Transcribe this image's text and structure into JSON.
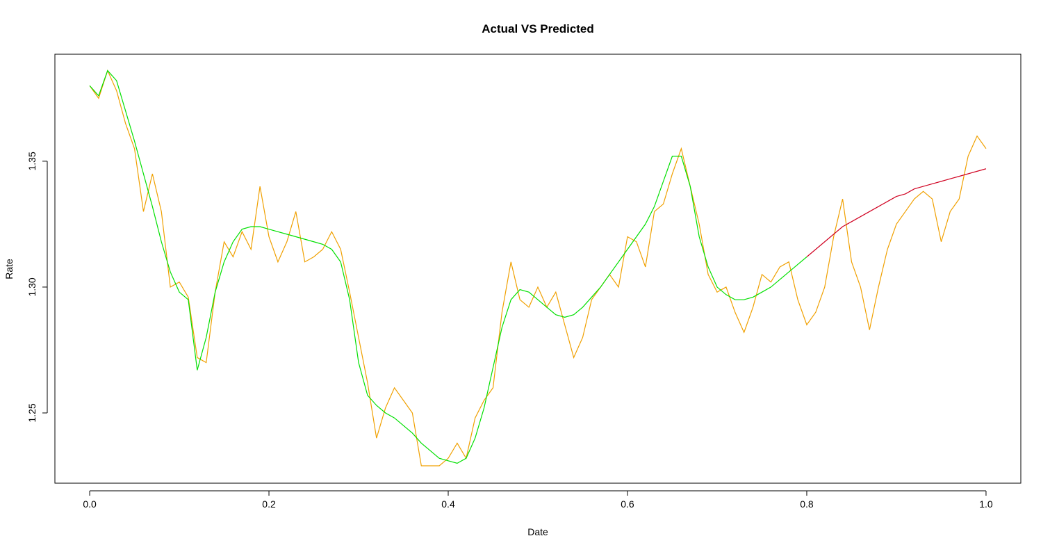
{
  "chart_data": {
    "type": "line",
    "title": "Actual VS Predicted",
    "x_label": "Date",
    "y_label": "Rate",
    "x": [
      0,
      0.01,
      0.02,
      0.03,
      0.04,
      0.05,
      0.06,
      0.07,
      0.08,
      0.09,
      0.1,
      0.11,
      0.12,
      0.13,
      0.14,
      0.15,
      0.16,
      0.17,
      0.18,
      0.19,
      0.2,
      0.21,
      0.22,
      0.23,
      0.24,
      0.25,
      0.26,
      0.27,
      0.28,
      0.29,
      0.3,
      0.31,
      0.32,
      0.33,
      0.34,
      0.35,
      0.36,
      0.37,
      0.38,
      0.39,
      0.4,
      0.41,
      0.42,
      0.43,
      0.44,
      0.45,
      0.46,
      0.47,
      0.48,
      0.49,
      0.5,
      0.51,
      0.52,
      0.53,
      0.54,
      0.55,
      0.56,
      0.57,
      0.58,
      0.59,
      0.6,
      0.61,
      0.62,
      0.63,
      0.64,
      0.65,
      0.66,
      0.67,
      0.68,
      0.69,
      0.7,
      0.71,
      0.72,
      0.73,
      0.74,
      0.75,
      0.76,
      0.77,
      0.78,
      0.79,
      0.8,
      0.81,
      0.82,
      0.83,
      0.84,
      0.85,
      0.86,
      0.87,
      0.88,
      0.89,
      0.9,
      0.91,
      0.92,
      0.93,
      0.94,
      0.95,
      0.96,
      0.97,
      0.98,
      0.99,
      1
    ],
    "series": [
      {
        "color": "#f0a000",
        "values": [
          1.38,
          1.375,
          1.386,
          1.378,
          1.365,
          1.355,
          1.33,
          1.345,
          1.33,
          1.3,
          1.302,
          1.296,
          1.272,
          1.27,
          1.298,
          1.318,
          1.312,
          1.322,
          1.315,
          1.34,
          1.32,
          1.31,
          1.318,
          1.33,
          1.31,
          1.312,
          1.315,
          1.322,
          1.315,
          1.298,
          1.28,
          1.262,
          1.24,
          1.252,
          1.26,
          1.255,
          1.25,
          1.229,
          1.229,
          1.229,
          1.232,
          1.238,
          1.232,
          1.248,
          1.255,
          1.26,
          1.29,
          1.31,
          1.295,
          1.292,
          1.3,
          1.292,
          1.298,
          1.285,
          1.272,
          1.28,
          1.295,
          1.3,
          1.305,
          1.3,
          1.32,
          1.318,
          1.308,
          1.33,
          1.333,
          1.345,
          1.355,
          1.34,
          1.325,
          1.305,
          1.298,
          1.3,
          1.29,
          1.282,
          1.292,
          1.305,
          1.302,
          1.308,
          1.31,
          1.295,
          1.285,
          1.29,
          1.3,
          1.32,
          1.335,
          1.31,
          1.3,
          1.283,
          1.3,
          1.315,
          1.325,
          1.33,
          1.335,
          1.338,
          1.335,
          1.318,
          1.33,
          1.335,
          1.352,
          1.36,
          1.355
        ]
      },
      {
        "color": "#00e000",
        "values": [
          1.38,
          1.376,
          1.386,
          1.382,
          1.37,
          1.358,
          1.345,
          1.332,
          1.318,
          1.306,
          1.298,
          1.295,
          1.267,
          1.28,
          1.298,
          1.31,
          1.318,
          1.323,
          1.324,
          1.324,
          1.323,
          1.322,
          1.321,
          1.32,
          1.319,
          1.318,
          1.317,
          1.315,
          1.31,
          1.295,
          1.27,
          1.257,
          1.253,
          1.25,
          1.248,
          1.245,
          1.242,
          1.238,
          1.235,
          1.232,
          1.231,
          1.23,
          1.232,
          1.24,
          1.252,
          1.268,
          1.284,
          1.295,
          1.299,
          1.298,
          1.295,
          1.292,
          1.289,
          1.288,
          1.289,
          1.292,
          1.296,
          1.3,
          1.305,
          1.31,
          1.315,
          1.32,
          1.325,
          1.332,
          1.342,
          1.352,
          1.352,
          1.34,
          1.32,
          1.308,
          1.3,
          1.297,
          1.295,
          1.295,
          1.296,
          1.298,
          1.3,
          1.303,
          1.306,
          1.309,
          1.312,
          null,
          null,
          null,
          null,
          null,
          null,
          null,
          null,
          null,
          null,
          null,
          null,
          null,
          null,
          null,
          null,
          null,
          null,
          null,
          null
        ]
      },
      {
        "color": "#d00020",
        "values": [
          null,
          null,
          null,
          null,
          null,
          null,
          null,
          null,
          null,
          null,
          null,
          null,
          null,
          null,
          null,
          null,
          null,
          null,
          null,
          null,
          null,
          null,
          null,
          null,
          null,
          null,
          null,
          null,
          null,
          null,
          null,
          null,
          null,
          null,
          null,
          null,
          null,
          null,
          null,
          null,
          null,
          null,
          null,
          null,
          null,
          null,
          null,
          null,
          null,
          null,
          null,
          null,
          null,
          null,
          null,
          null,
          null,
          null,
          null,
          null,
          null,
          null,
          null,
          null,
          null,
          null,
          null,
          null,
          null,
          null,
          null,
          null,
          null,
          null,
          null,
          null,
          null,
          null,
          null,
          null,
          1.312,
          1.315,
          1.318,
          1.321,
          1.324,
          1.326,
          1.328,
          1.33,
          1.332,
          1.334,
          1.336,
          1.337,
          1.339,
          1.34,
          1.341,
          1.342,
          1.343,
          1.344,
          1.345,
          1.346,
          1.347
        ]
      }
    ],
    "xlim": [
      -0.0388,
      1.0388
    ],
    "ylim": [
      1.2221,
      1.3925
    ],
    "xticks": [
      {
        "value": 0,
        "label": "0.0"
      },
      0.2,
      0.4,
      0.6,
      0.8,
      {
        "value": 1,
        "label": "1.0"
      }
    ],
    "yticks": [
      1.25,
      {
        "value": 1.3,
        "label": "1.30"
      },
      1.35
    ]
  }
}
